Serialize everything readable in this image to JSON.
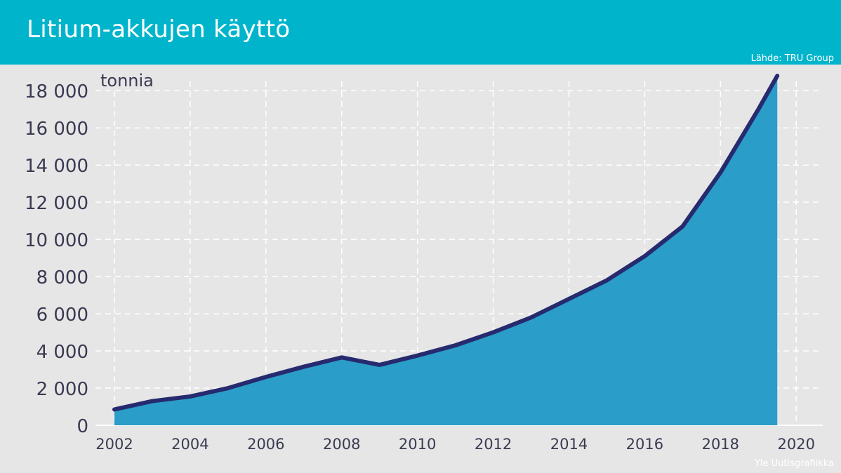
{
  "header": {
    "title": "Litium-akkujen käyttö",
    "source": "Lähde: TRU Group"
  },
  "footer": {
    "credit": "Yle Uutisgrafiikka"
  },
  "colors": {
    "header_bg": "#00b4cc",
    "background": "#e6e6e6",
    "area_fill": "#2a9dc8",
    "line": "#262a6e",
    "grid": "#ffffff",
    "text": "#3a3a52"
  },
  "chart_data": {
    "type": "area",
    "title": "Litium-akkujen käyttö",
    "ylabel": "tonnia",
    "xlabel": "",
    "xlim": [
      2001.5,
      2020.7
    ],
    "ylim": [
      0,
      18500
    ],
    "x_ticks": [
      2002,
      2004,
      2006,
      2008,
      2010,
      2012,
      2014,
      2016,
      2018,
      2020
    ],
    "x_tick_labels": [
      "2002",
      "2004",
      "2006",
      "2008",
      "2010",
      "2012",
      "2014",
      "2016",
      "2018",
      "2020"
    ],
    "y_ticks": [
      0,
      2000,
      4000,
      6000,
      8000,
      10000,
      12000,
      14000,
      16000,
      18000
    ],
    "y_tick_labels": [
      "0",
      "2 000",
      "4 000",
      "6 000",
      "8 000",
      "10 000",
      "12 000",
      "14 000",
      "16 000",
      "18 000"
    ],
    "grid": true,
    "series": [
      {
        "x": [
          2002,
          2003,
          2004,
          2005,
          2006,
          2007,
          2008,
          2009,
          2010,
          2011,
          2012,
          2013,
          2014,
          2015,
          2016,
          2017,
          2018,
          2019,
          2019.5
        ],
        "values": [
          850,
          1300,
          1550,
          2000,
          2600,
          3150,
          3650,
          3250,
          3750,
          4300,
          5000,
          5800,
          6800,
          7800,
          9100,
          10700,
          13600,
          17000,
          18800
        ]
      }
    ]
  }
}
